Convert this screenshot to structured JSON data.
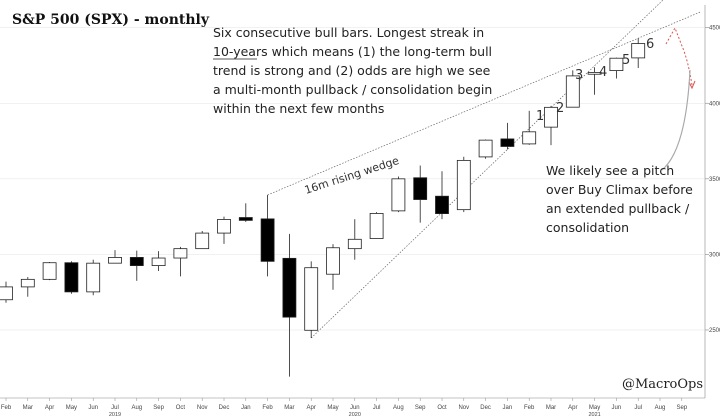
{
  "chart_data": {
    "type": "candlestick",
    "title": "S&P 500 (SPX) - monthly",
    "months": [
      "Feb",
      "Mar",
      "Apr",
      "May",
      "Jun",
      "Jul",
      "Aug",
      "Sep",
      "Oct",
      "Nov",
      "Dec",
      "Jan",
      "Feb",
      "Mar",
      "Apr",
      "May",
      "Jun",
      "Jul",
      "Aug",
      "Sep",
      "Oct",
      "Nov",
      "Dec",
      "Jan",
      "Feb",
      "Mar",
      "Apr",
      "May",
      "Jun",
      "Jul",
      "Aug",
      "Sep"
    ],
    "years": [
      {
        "label": "2019",
        "index": 5
      },
      {
        "label": "2020",
        "index": 16
      },
      {
        "label": "2021",
        "index": 27
      }
    ],
    "y_ticks": [
      2500,
      3000,
      3500,
      4000,
      4500
    ],
    "ylim": [
      2050,
      4650
    ],
    "candles": [
      {
        "o": 2700,
        "h": 2820,
        "l": 2680,
        "c": 2785
      },
      {
        "o": 2785,
        "h": 2850,
        "l": 2720,
        "c": 2835
      },
      {
        "o": 2835,
        "h": 2950,
        "l": 2830,
        "c": 2945
      },
      {
        "o": 2945,
        "h": 2955,
        "l": 2740,
        "c": 2752
      },
      {
        "o": 2752,
        "h": 2965,
        "l": 2730,
        "c": 2942
      },
      {
        "o": 2942,
        "h": 3028,
        "l": 2950,
        "c": 2980
      },
      {
        "o": 2980,
        "h": 3025,
        "l": 2825,
        "c": 2926
      },
      {
        "o": 2926,
        "h": 3022,
        "l": 2890,
        "c": 2976
      },
      {
        "o": 2976,
        "h": 3050,
        "l": 2855,
        "c": 3038
      },
      {
        "o": 3038,
        "h": 3155,
        "l": 3050,
        "c": 3141
      },
      {
        "o": 3141,
        "h": 3250,
        "l": 3070,
        "c": 3231
      },
      {
        "o": 3244,
        "h": 3338,
        "l": 3215,
        "c": 3225
      },
      {
        "o": 3235,
        "h": 3393,
        "l": 2855,
        "c": 2954
      },
      {
        "o": 2974,
        "h": 3136,
        "l": 2191,
        "c": 2585
      },
      {
        "o": 2498,
        "h": 2954,
        "l": 2447,
        "c": 2912
      },
      {
        "o": 2869,
        "h": 3068,
        "l": 2766,
        "c": 3044
      },
      {
        "o": 3038,
        "h": 3233,
        "l": 2965,
        "c": 3100
      },
      {
        "o": 3105,
        "h": 3280,
        "l": 3115,
        "c": 3271
      },
      {
        "o": 3288,
        "h": 3515,
        "l": 3280,
        "c": 3500
      },
      {
        "o": 3507,
        "h": 3588,
        "l": 3210,
        "c": 3363
      },
      {
        "o": 3385,
        "h": 3550,
        "l": 3233,
        "c": 3270
      },
      {
        "o": 3296,
        "h": 3646,
        "l": 3280,
        "c": 3622
      },
      {
        "o": 3645,
        "h": 3760,
        "l": 3633,
        "c": 3756
      },
      {
        "o": 3764,
        "h": 3870,
        "l": 3694,
        "c": 3714
      },
      {
        "o": 3731,
        "h": 3950,
        "l": 3725,
        "c": 3811
      },
      {
        "o": 3842,
        "h": 3983,
        "l": 3723,
        "c": 3973
      },
      {
        "o": 3974,
        "h": 4218,
        "l": 3975,
        "c": 4181
      },
      {
        "o": 4192,
        "h": 4238,
        "l": 4056,
        "c": 4204
      },
      {
        "o": 4216,
        "h": 4302,
        "l": 4164,
        "c": 4298
      },
      {
        "o": 4300,
        "h": 4430,
        "l": 4233,
        "c": 4395
      }
    ],
    "annotations": {
      "main_text": [
        "Six consecutive bull bars. Longest streak in",
        "10-years which means (1) the long-term bull",
        "trend is strong and (2) odds are high we see",
        "a multi-month pullback / consolidation begin",
        "within the next few months"
      ],
      "underlined": "10-years",
      "side_text": [
        "We likely see a pitch",
        "over Buy Climax before",
        "an extended pullback /",
        "consolidation"
      ],
      "wedge_label": "16m rising wedge",
      "bar_numbers": [
        "1",
        "2",
        "3",
        "4",
        "5",
        "6"
      ],
      "credit": "@MacroOps"
    }
  }
}
